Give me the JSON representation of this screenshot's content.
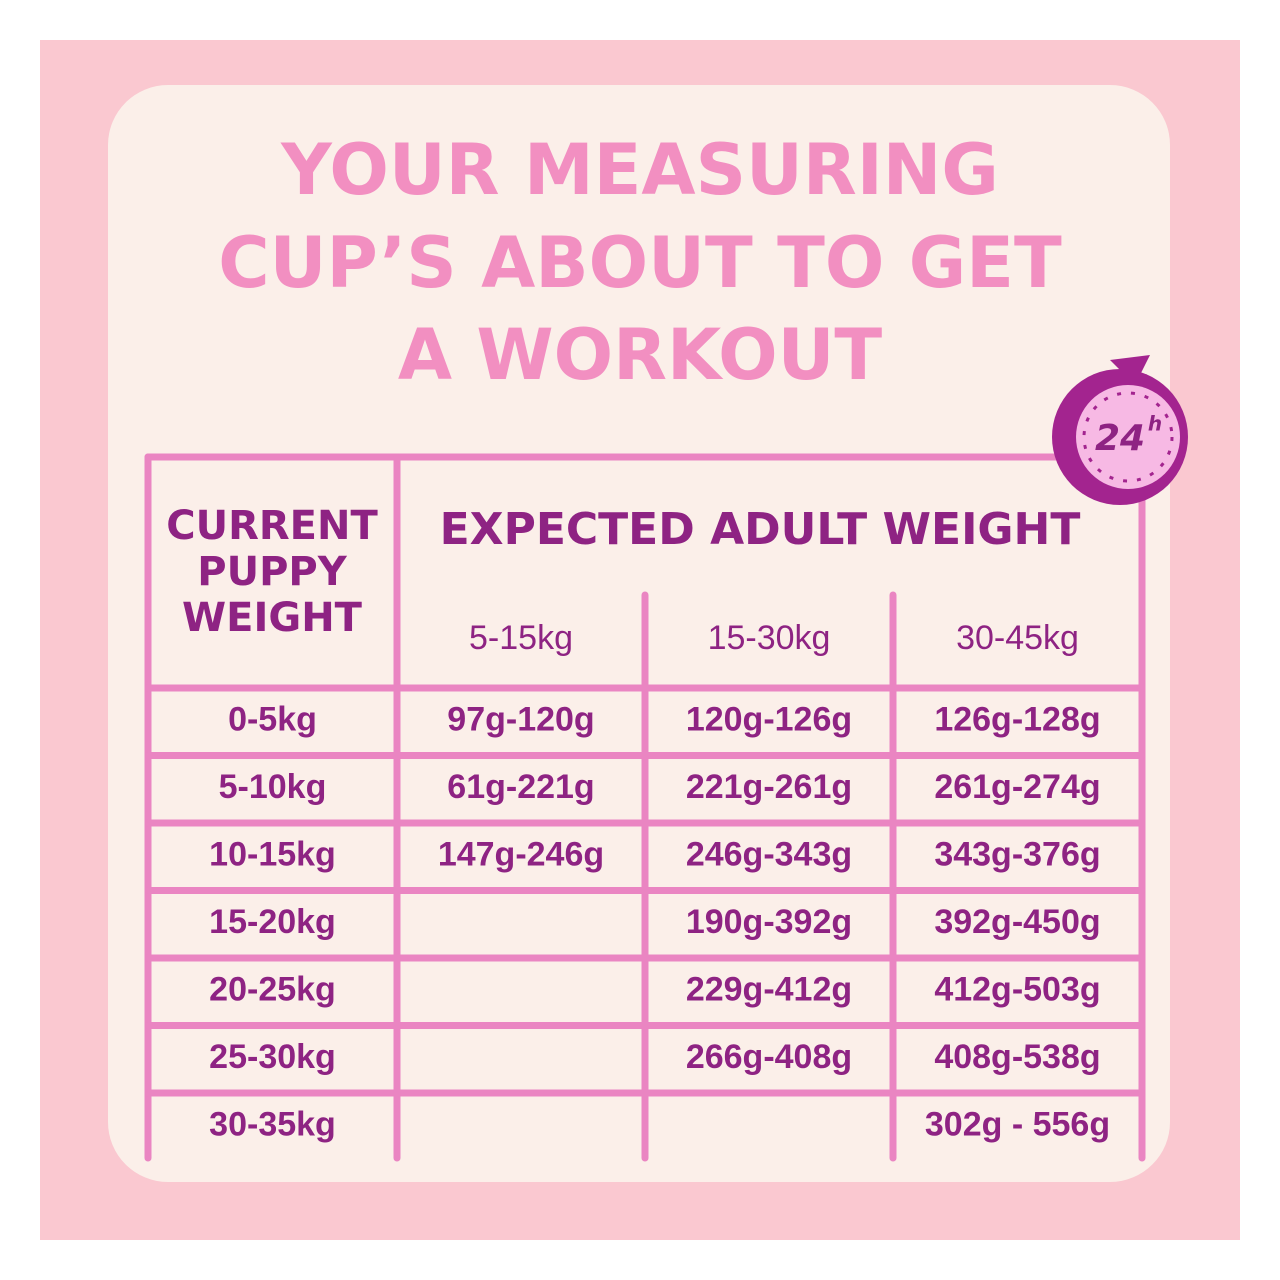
{
  "title": {
    "lines": [
      "YOUR MEASURING",
      "CUP’S ABOUT TO GET",
      "A WORKOUT"
    ]
  },
  "badge": {
    "number": "24",
    "unit": "h"
  },
  "table": {
    "row_header": [
      "CURRENT",
      "PUPPY",
      "WEIGHT"
    ],
    "group_header": "EXPECTED ADULT WEIGHT",
    "columns": [
      "5-15kg",
      "15-30kg",
      "30-45kg"
    ],
    "rows": [
      [
        "0-5kg",
        "97g-120g",
        "120g-126g",
        "126g-128g"
      ],
      [
        "5-10kg",
        "61g-221g",
        "221g-261g",
        "261g-274g"
      ],
      [
        "10-15kg",
        "147g-246g",
        "246g-343g",
        "343g-376g"
      ],
      [
        "15-20kg",
        null,
        "190g-392g",
        "392g-450g"
      ],
      [
        "20-25kg",
        null,
        "229g-412g",
        "412g-503g"
      ],
      [
        "25-30kg",
        null,
        "266g-408g",
        "408g-538g"
      ],
      [
        "30-35kg",
        null,
        null,
        "302g - 556g"
      ]
    ]
  }
}
